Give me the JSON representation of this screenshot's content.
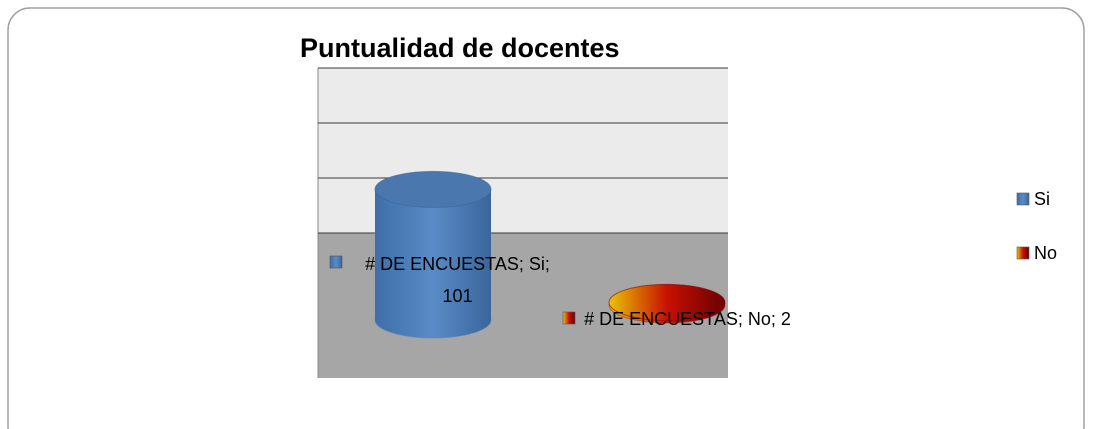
{
  "chart_data": {
    "type": "bar3d",
    "title": "Puntualidad de docentes",
    "categories": [
      "Si",
      "No"
    ],
    "values": [
      101,
      2
    ],
    "value_labels": [
      "# DE ENCUESTAS; Si; 101",
      "# DE ENCUESTAS; No; 2"
    ],
    "colors": [
      "#4f81bd",
      "#c00000"
    ],
    "ylim": [
      0,
      150
    ],
    "yticks": [
      0,
      50,
      100,
      150
    ],
    "grid": true,
    "legend": "right"
  }
}
